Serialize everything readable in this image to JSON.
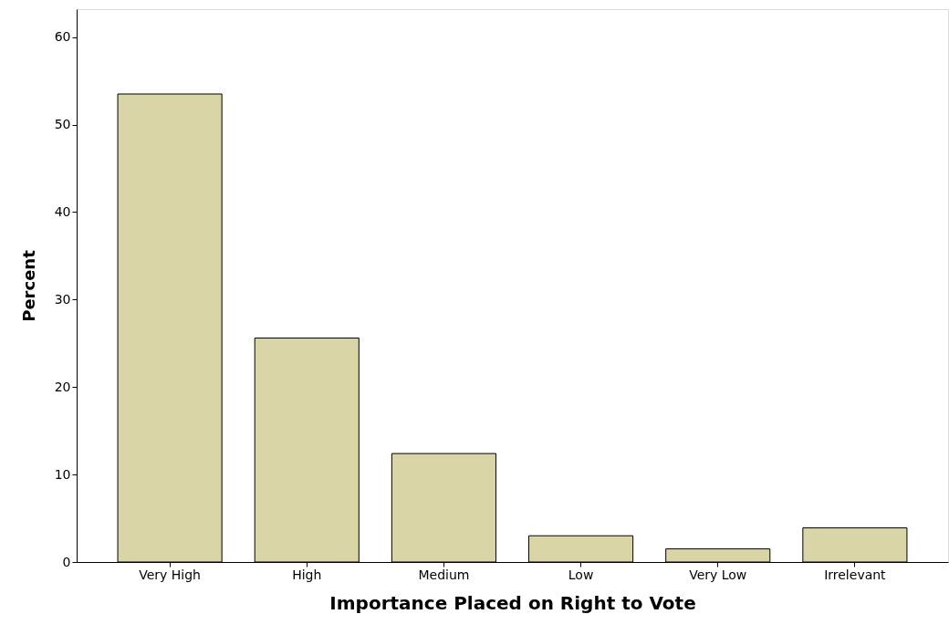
{
  "chart_data": {
    "type": "bar",
    "xlabel": "Importance Placed on Right to Vote",
    "ylabel": "Percent",
    "categories": [
      "Very High",
      "High",
      "Medium",
      "Low",
      "Very Low",
      "Irrelevant"
    ],
    "values": [
      53.5,
      25.6,
      12.4,
      3.0,
      1.5,
      3.9
    ],
    "color": "#d9d5a7",
    "ylim": [
      0,
      63.2
    ],
    "yticks": [
      0,
      10,
      20,
      30,
      40,
      50,
      60
    ],
    "grid": false
  }
}
